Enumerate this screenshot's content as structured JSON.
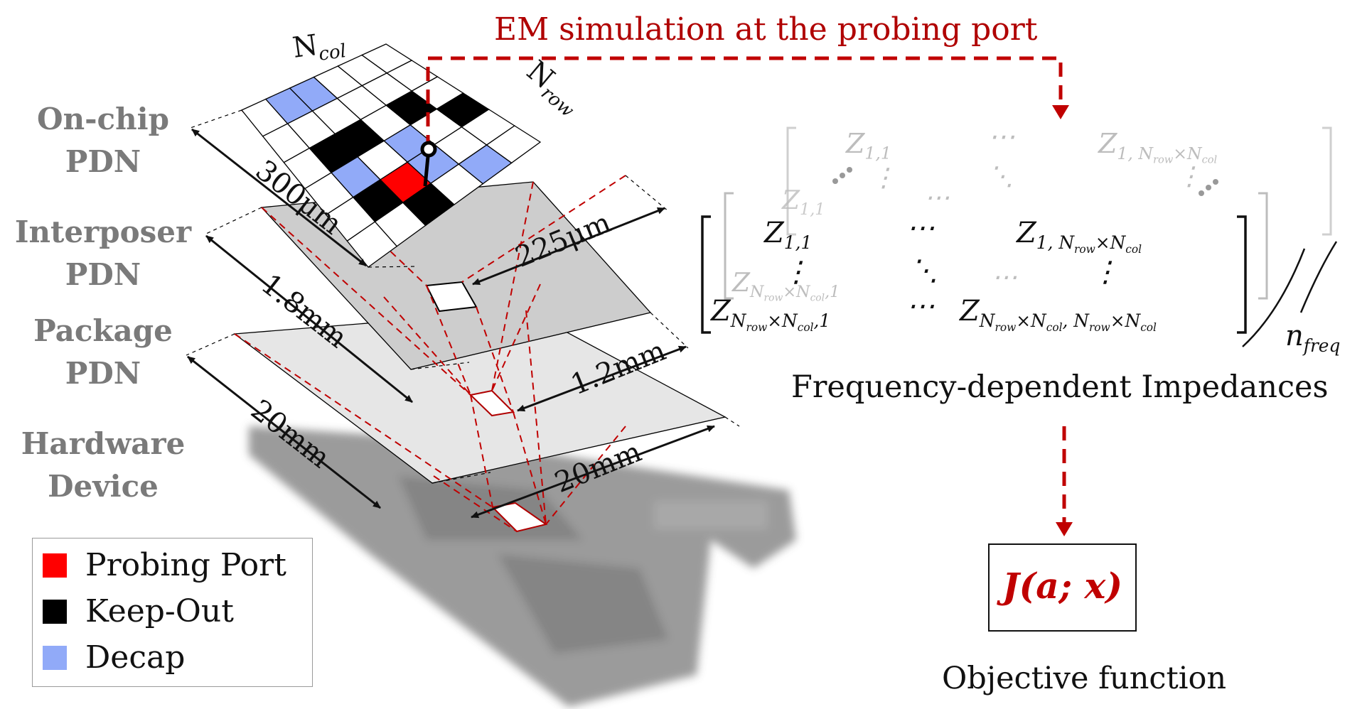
{
  "em_label": "EM simulation at the probing port",
  "layers": [
    {
      "line1": "On-chip",
      "line2": "PDN"
    },
    {
      "line1": "Interposer",
      "line2": "PDN"
    },
    {
      "line1": "Package",
      "line2": "PDN"
    },
    {
      "line1": "Hardware",
      "line2": "Device"
    }
  ],
  "grid": {
    "col_label": "col",
    "row_label": "row",
    "N": "N",
    "cells": [
      [
        "w",
        "b",
        "b",
        "w",
        "w",
        "w"
      ],
      [
        "w",
        "w",
        "w",
        "w",
        "w",
        "w"
      ],
      [
        "w",
        "k",
        "k",
        "w",
        "k",
        "w"
      ],
      [
        "w",
        "b",
        "w",
        "b",
        "w",
        "k"
      ],
      [
        "w",
        "k",
        "p",
        "b",
        "w",
        "w"
      ],
      [
        "w",
        "w",
        "k",
        "w",
        "b",
        "w"
      ]
    ],
    "colors": {
      "w": "#ffffff",
      "b": "#91aaf8",
      "k": "#000000",
      "p": "#ff0000"
    }
  },
  "dimensions": {
    "d300": "300μm",
    "d225": "225μm",
    "d18": "1.8mm",
    "d12": "1.2mm",
    "d20a": "20mm",
    "d20b": "20mm"
  },
  "legend": [
    {
      "label": "Probing Port",
      "color": "#ff0000"
    },
    {
      "label": "Keep-Out",
      "color": "#000000"
    },
    {
      "label": "Decap",
      "color": "#91aaf8"
    }
  ],
  "matrix": {
    "z": "Z",
    "s11": "1,1",
    "s1n": "1, N",
    "row": "row",
    "times": "×",
    "col": "col",
    "dots_h": "⋯",
    "dots_v": "⋮",
    "dots_d": "⋱",
    "comma1": ",1",
    "n_freq_n": "n",
    "n_freq_sub": "freq"
  },
  "caption_impedance": "Frequency-dependent Impedances",
  "objective": {
    "text": "J(a; x)",
    "caption": "Objective function"
  }
}
